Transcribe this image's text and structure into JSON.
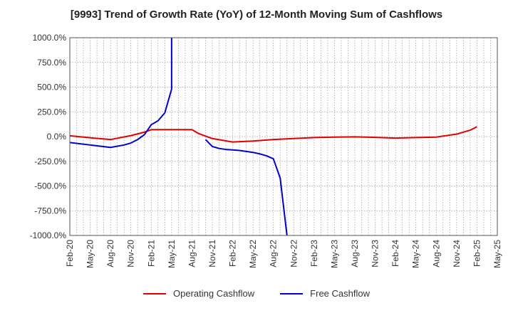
{
  "chart_data": {
    "type": "line",
    "title": "[9993]  Trend of Growth Rate (YoY) of 12-Month Moving Sum of Cashflows",
    "ylim": [
      -1000,
      1000
    ],
    "y_ticks": [
      -1000,
      -750,
      -500,
      -250,
      0,
      250,
      500,
      750,
      1000
    ],
    "y_tick_labels": [
      "-1000.0%",
      "-750.0%",
      "-500.0%",
      "-250.0%",
      "0.0%",
      "250.0%",
      "500.0%",
      "750.0%",
      "1000.0%"
    ],
    "x_tick_labels": [
      "Feb-20",
      "May-20",
      "Aug-20",
      "Nov-20",
      "Feb-21",
      "May-21",
      "Aug-21",
      "Nov-21",
      "Feb-22",
      "May-22",
      "Aug-22",
      "Nov-22",
      "Feb-23",
      "May-23",
      "Aug-23",
      "Nov-23",
      "Feb-24",
      "May-24",
      "Aug-24",
      "Nov-24",
      "Feb-25",
      "May-25"
    ],
    "grid": true,
    "legend_position": "bottom",
    "series": [
      {
        "name": "Operating Cashflow",
        "color": "#e00000",
        "points": [
          [
            "Feb-20",
            8
          ],
          [
            "May-20",
            -12
          ],
          [
            "Aug-20",
            -30
          ],
          [
            "Nov-20",
            10
          ],
          [
            "Jan-21",
            45
          ],
          [
            "Feb-21",
            70
          ],
          [
            "May-21",
            70
          ],
          [
            "Aug-21",
            70
          ],
          [
            "Sep-21",
            30
          ],
          [
            "Nov-21",
            -20
          ],
          [
            "Feb-22",
            -55
          ],
          [
            "May-22",
            -45
          ],
          [
            "Aug-22",
            -30
          ],
          [
            "Nov-22",
            -20
          ],
          [
            "Feb-23",
            -10
          ],
          [
            "May-23",
            -5
          ],
          [
            "Aug-23",
            -3
          ],
          [
            "Nov-23",
            -8
          ],
          [
            "Feb-24",
            -15
          ],
          [
            "May-24",
            -10
          ],
          [
            "Aug-24",
            -5
          ],
          [
            "Nov-24",
            25
          ],
          [
            "Jan-25",
            65
          ],
          [
            "Feb-25",
            100
          ]
        ]
      },
      {
        "name": "Free Cashflow",
        "color": "#0000cc",
        "segments": [
          [
            [
              "Feb-20",
              -60
            ],
            [
              "May-20",
              -85
            ],
            [
              "Aug-20",
              -110
            ],
            [
              "Oct-20",
              -85
            ],
            [
              "Nov-20",
              -65
            ],
            [
              "Dec-20",
              -30
            ],
            [
              "Jan-21",
              20
            ],
            [
              "Feb-21",
              120
            ],
            [
              "Mar-21",
              160
            ],
            [
              "Apr-21",
              240
            ],
            [
              "May-21",
              480
            ],
            [
              "May-21",
              1000
            ]
          ],
          [
            [
              "Oct-21",
              -30
            ],
            [
              "Nov-21",
              -100
            ],
            [
              "Dec-21",
              -120
            ],
            [
              "Jan-22",
              -130
            ],
            [
              "Feb-22",
              -135
            ],
            [
              "Mar-22",
              -140
            ],
            [
              "Apr-22",
              -150
            ],
            [
              "May-22",
              -160
            ],
            [
              "Jun-22",
              -175
            ],
            [
              "Jul-22",
              -195
            ],
            [
              "Aug-22",
              -225
            ],
            [
              "Sep-22",
              -420
            ],
            [
              "Oct-22",
              -1000
            ]
          ]
        ]
      }
    ]
  }
}
